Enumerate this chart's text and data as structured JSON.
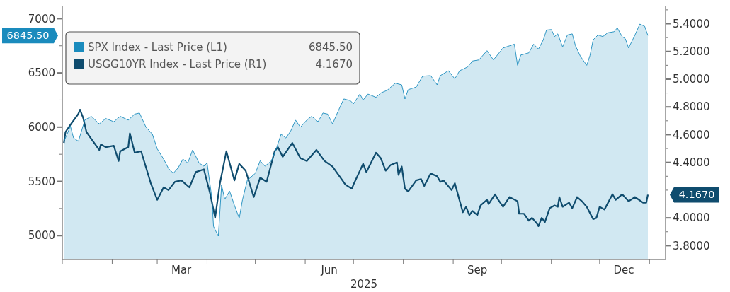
{
  "chart_data": {
    "type": "line",
    "xlabel": "2025",
    "annotations": [
      "6845.50",
      "4.1670",
      "6845.50",
      "4.1670"
    ],
    "legend": "top left",
    "grid": false,
    "xlim": [
      "2025-01-01",
      "2026-01-11"
    ],
    "xticks": [
      {
        "value": "2025-01-01",
        "label": null
      },
      {
        "value": "2025-02-01",
        "label": null
      },
      {
        "value": "2025-03-01",
        "label": null
      },
      {
        "value": "2025-03-16",
        "label": "Mar"
      },
      {
        "value": "2025-04-01",
        "label": null
      },
      {
        "value": "2025-05-01",
        "label": null
      },
      {
        "value": "2025-06-01",
        "label": null
      },
      {
        "value": "2025-06-16",
        "label": "Jun"
      },
      {
        "value": "2025-07-01",
        "label": null
      },
      {
        "value": "2025-08-01",
        "label": null
      },
      {
        "value": "2025-09-01",
        "label": null
      },
      {
        "value": "2025-09-16",
        "label": "Sep"
      },
      {
        "value": "2025-10-01",
        "label": null
      },
      {
        "value": "2025-11-01",
        "label": null
      },
      {
        "value": "2025-12-01",
        "label": null
      },
      {
        "value": "2025-12-16",
        "label": "Dec"
      },
      {
        "value": "2026-01-01",
        "label": null
      }
    ],
    "ylim": [
      4780,
      7120
    ],
    "yticks": [
      5000,
      {
        "value": 5250,
        "label": null
      },
      5500,
      {
        "value": 5750,
        "label": null
      },
      6000,
      {
        "value": 6250,
        "label": null
      },
      6500,
      {
        "value": 6750,
        "label": null
      },
      7000
    ],
    "y2lim": [
      3.7,
      5.53
    ],
    "y2ticks": [
      {
        "value": 3.8,
        "label": "3.8000"
      },
      {
        "value": 3.9,
        "label": null
      },
      {
        "value": 4.0,
        "label": "4.0000"
      },
      {
        "value": 4.1,
        "label": null
      },
      {
        "value": 4.2,
        "label": null
      },
      {
        "value": 4.3,
        "label": null
      },
      {
        "value": 4.4,
        "label": "4.4000"
      },
      {
        "value": 4.5,
        "label": null
      },
      {
        "value": 4.6,
        "label": "4.6000"
      },
      {
        "value": 4.7,
        "label": null
      },
      {
        "value": 4.8,
        "label": "4.8000"
      },
      {
        "value": 4.9,
        "label": null
      },
      {
        "value": 5.0,
        "label": "5.0000"
      },
      {
        "value": 5.1,
        "label": null
      },
      {
        "value": 5.2,
        "label": "5.2000"
      },
      {
        "value": 5.3,
        "label": null
      },
      {
        "value": 5.4,
        "label": "5.4000"
      },
      {
        "value": 5.5,
        "label": null
      }
    ],
    "series": [
      {
        "name": "SPX Index - Last Price (L1)",
        "type": "area",
        "color": "#1a8bbd",
        "x": [
          "2025-01-02",
          "2025-01-04",
          "2025-01-06",
          "2025-01-08",
          "2025-01-11",
          "2025-01-15",
          "2025-01-19",
          "2025-01-24",
          "2025-01-28",
          "2025-02-02",
          "2025-02-06",
          "2025-02-11",
          "2025-02-15",
          "2025-02-18",
          "2025-02-22",
          "2025-02-26",
          "2025-03-01",
          "2025-03-05",
          "2025-03-08",
          "2025-03-11",
          "2025-03-14",
          "2025-03-17",
          "2025-03-20",
          "2025-03-23",
          "2025-03-27",
          "2025-03-30",
          "2025-04-01",
          "2025-04-04",
          "2025-04-05",
          "2025-04-08",
          "2025-04-10",
          "2025-04-12",
          "2025-04-15",
          "2025-04-18",
          "2025-04-21",
          "2025-04-23",
          "2025-04-26",
          "2025-05-01",
          "2025-05-04",
          "2025-05-07",
          "2025-05-11",
          "2025-05-14",
          "2025-05-17",
          "2025-05-20",
          "2025-05-23",
          "2025-05-26",
          "2025-05-29",
          "2025-06-02",
          "2025-06-05",
          "2025-06-09",
          "2025-06-12",
          "2025-06-15",
          "2025-06-18",
          "2025-06-22",
          "2025-06-25",
          "2025-06-29",
          "2025-07-01",
          "2025-07-05",
          "2025-07-07",
          "2025-07-10",
          "2025-07-15",
          "2025-07-18",
          "2025-07-22",
          "2025-07-27",
          "2025-07-31",
          "2025-08-02",
          "2025-08-04",
          "2025-08-09",
          "2025-08-13",
          "2025-08-18",
          "2025-08-22",
          "2025-08-24",
          "2025-08-29",
          "2025-09-02",
          "2025-09-05",
          "2025-09-10",
          "2025-09-13",
          "2025-09-17",
          "2025-09-22",
          "2025-09-26",
          "2025-10-02",
          "2025-10-06",
          "2025-10-09",
          "2025-10-11",
          "2025-10-13",
          "2025-10-18",
          "2025-10-21",
          "2025-10-24",
          "2025-10-27",
          "2025-10-29",
          "2025-11-01",
          "2025-11-03",
          "2025-11-05",
          "2025-11-08",
          "2025-11-11",
          "2025-11-14",
          "2025-11-16",
          "2025-11-19",
          "2025-11-23",
          "2025-11-25",
          "2025-11-27",
          "2025-11-30",
          "2025-12-03",
          "2025-12-06",
          "2025-12-10",
          "2025-12-12",
          "2025-12-15",
          "2025-12-17",
          "2025-12-19",
          "2025-12-23",
          "2025-12-26",
          "2025-12-29",
          "2025-12-31"
        ],
        "values": [
          5870,
          5935,
          6010,
          5900,
          5870,
          6065,
          6100,
          6030,
          6080,
          6050,
          6100,
          6065,
          6120,
          6130,
          6000,
          5935,
          5800,
          5705,
          5620,
          5575,
          5625,
          5705,
          5670,
          5790,
          5670,
          5640,
          5670,
          5345,
          5085,
          4995,
          5465,
          5335,
          5410,
          5280,
          5160,
          5330,
          5510,
          5575,
          5690,
          5640,
          5690,
          5800,
          5935,
          5900,
          5965,
          6065,
          6000,
          6065,
          6100,
          6050,
          6130,
          6120,
          6030,
          6165,
          6260,
          6245,
          6215,
          6305,
          6250,
          6305,
          6275,
          6315,
          6340,
          6405,
          6390,
          6260,
          6345,
          6370,
          6470,
          6475,
          6390,
          6475,
          6520,
          6445,
          6520,
          6555,
          6610,
          6620,
          6705,
          6620,
          6730,
          6750,
          6765,
          6570,
          6665,
          6685,
          6765,
          6720,
          6805,
          6895,
          6900,
          6835,
          6860,
          6740,
          6850,
          6860,
          6750,
          6655,
          6570,
          6660,
          6805,
          6850,
          6835,
          6870,
          6880,
          6915,
          6835,
          6815,
          6730,
          6850,
          6950,
          6930,
          6845
        ]
      },
      {
        "name": "USGG10YR Index - Last Price (R1)",
        "axis": "y2",
        "color": "#0f4c6e",
        "x": [
          "2025-01-02",
          "2025-01-03",
          "2025-01-06",
          "2025-01-11",
          "2025-01-12",
          "2025-01-14",
          "2025-01-16",
          "2025-01-19",
          "2025-01-24",
          "2025-01-25",
          "2025-01-28",
          "2025-02-02",
          "2025-02-05",
          "2025-02-06",
          "2025-02-11",
          "2025-02-12",
          "2025-02-15",
          "2025-02-19",
          "2025-02-25",
          "2025-03-01",
          "2025-03-05",
          "2025-03-08",
          "2025-03-12",
          "2025-03-16",
          "2025-03-21",
          "2025-03-25",
          "2025-03-30",
          "2025-04-03",
          "2025-04-06",
          "2025-04-09",
          "2025-04-13",
          "2025-04-18",
          "2025-04-21",
          "2025-04-25",
          "2025-04-30",
          "2025-05-04",
          "2025-05-08",
          "2025-05-13",
          "2025-05-15",
          "2025-05-18",
          "2025-05-24",
          "2025-05-29",
          "2025-06-02",
          "2025-06-08",
          "2025-06-13",
          "2025-06-18",
          "2025-06-26",
          "2025-06-30",
          "2025-07-01",
          "2025-07-07",
          "2025-07-09",
          "2025-07-15",
          "2025-07-18",
          "2025-07-21",
          "2025-07-24",
          "2025-07-28",
          "2025-07-29",
          "2025-07-31",
          "2025-08-02",
          "2025-08-04",
          "2025-08-09",
          "2025-08-12",
          "2025-08-14",
          "2025-08-18",
          "2025-08-22",
          "2025-08-24",
          "2025-08-26",
          "2025-08-31",
          "2025-09-02",
          "2025-09-07",
          "2025-09-09",
          "2025-09-11",
          "2025-09-13",
          "2025-09-16",
          "2025-09-18",
          "2025-09-22",
          "2025-09-23",
          "2025-09-27",
          "2025-09-29",
          "2025-10-02",
          "2025-10-06",
          "2025-10-11",
          "2025-10-12",
          "2025-10-15",
          "2025-10-18",
          "2025-10-20",
          "2025-10-23",
          "2025-10-24",
          "2025-10-26",
          "2025-10-28",
          "2025-10-31",
          "2025-11-03",
          "2025-11-05",
          "2025-11-06",
          "2025-11-08",
          "2025-11-12",
          "2025-11-14",
          "2025-11-17",
          "2025-11-20",
          "2025-11-23",
          "2025-11-27",
          "2025-11-29",
          "2025-12-01",
          "2025-12-04",
          "2025-12-09",
          "2025-12-11",
          "2025-12-15",
          "2025-12-19",
          "2025-12-23",
          "2025-12-28",
          "2025-12-30",
          "2025-12-31"
        ],
        "values": [
          4.54,
          4.62,
          4.67,
          4.75,
          4.78,
          4.72,
          4.62,
          4.57,
          4.49,
          4.53,
          4.51,
          4.52,
          4.41,
          4.48,
          4.51,
          4.61,
          4.47,
          4.48,
          4.25,
          4.13,
          4.22,
          4.2,
          4.26,
          4.27,
          4.22,
          4.33,
          4.35,
          4.17,
          4.0,
          4.25,
          4.48,
          4.27,
          4.39,
          4.34,
          4.15,
          4.29,
          4.26,
          4.48,
          4.51,
          4.44,
          4.54,
          4.43,
          4.41,
          4.49,
          4.41,
          4.37,
          4.24,
          4.21,
          4.24,
          4.39,
          4.33,
          4.47,
          4.43,
          4.34,
          4.38,
          4.4,
          4.31,
          4.37,
          4.21,
          4.19,
          4.27,
          4.28,
          4.23,
          4.32,
          4.3,
          4.26,
          4.27,
          4.2,
          4.25,
          4.04,
          4.08,
          4.02,
          4.05,
          4.02,
          4.09,
          4.13,
          4.1,
          4.17,
          4.13,
          4.08,
          4.15,
          4.12,
          4.03,
          4.03,
          3.98,
          4.0,
          3.96,
          3.94,
          4.0,
          3.97,
          4.07,
          4.09,
          4.08,
          4.15,
          4.08,
          4.11,
          4.07,
          4.15,
          4.12,
          4.08,
          3.99,
          4.0,
          4.08,
          4.06,
          4.17,
          4.13,
          4.17,
          4.12,
          4.15,
          4.11,
          4.11,
          4.167
        ]
      }
    ]
  }
}
